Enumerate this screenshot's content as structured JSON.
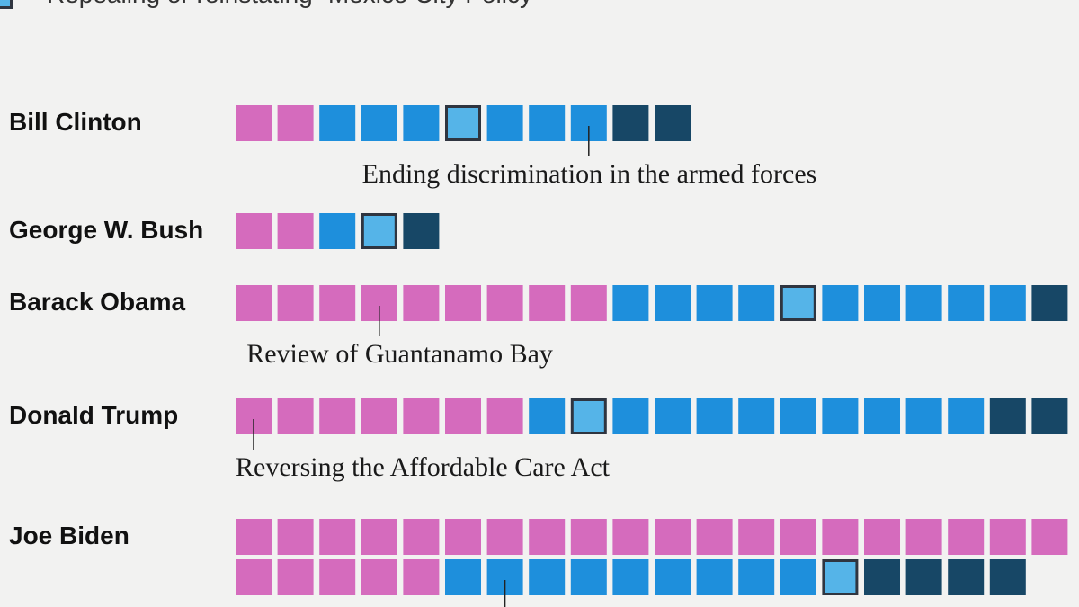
{
  "legend": {
    "label": "Repealing or reinstating “Mexico City Policy”",
    "swatch_color": "#55b4e8"
  },
  "colors": {
    "pink": "#d56bbd",
    "blue": "#1e8fdc",
    "light_blue": "#55b4e8",
    "dark_navy": "#174766",
    "highlight_border": "#2f3540"
  },
  "chart_data": {
    "type": "waffle",
    "categories_legend": [
      "pink",
      "blue",
      "light_blue",
      "dark_navy"
    ],
    "presidents": [
      {
        "name": "Bill Clinton",
        "blocks": [
          "pink",
          "pink",
          "blue",
          "blue",
          "blue",
          "light_blue",
          "blue",
          "blue",
          "blue",
          "dark_navy",
          "dark_navy"
        ],
        "highlight_index": 5,
        "annotation": {
          "text": "Ending discrimination in the armed forces",
          "index": 8
        }
      },
      {
        "name": "George W. Bush",
        "blocks": [
          "pink",
          "pink",
          "blue",
          "light_blue",
          "dark_navy"
        ],
        "highlight_index": 3,
        "annotation": null
      },
      {
        "name": "Barack Obama",
        "blocks": [
          "pink",
          "pink",
          "pink",
          "pink",
          "pink",
          "pink",
          "pink",
          "pink",
          "pink",
          "blue",
          "blue",
          "blue",
          "blue",
          "light_blue",
          "blue",
          "blue",
          "blue",
          "blue",
          "blue",
          "dark_navy"
        ],
        "highlight_index": 13,
        "annotation": {
          "text": "Review of Guantanamo Bay",
          "index": 3
        }
      },
      {
        "name": "Donald Trump",
        "blocks": [
          "pink",
          "pink",
          "pink",
          "pink",
          "pink",
          "pink",
          "pink",
          "blue",
          "light_blue",
          "blue",
          "blue",
          "blue",
          "blue",
          "blue",
          "blue",
          "blue",
          "blue",
          "blue",
          "dark_navy",
          "dark_navy"
        ],
        "highlight_index": 8,
        "annotation": {
          "text": "Reversing the Affordable Care Act",
          "index": 0
        }
      },
      {
        "name": "Joe Biden",
        "blocks": [
          "pink",
          "pink",
          "pink",
          "pink",
          "pink",
          "pink",
          "pink",
          "pink",
          "pink",
          "pink",
          "pink",
          "pink",
          "pink",
          "pink",
          "pink",
          "pink",
          "pink",
          "pink",
          "pink",
          "pink",
          "pink",
          "pink",
          "pink",
          "pink",
          "pink",
          "blue",
          "blue",
          "blue",
          "blue",
          "blue",
          "blue",
          "blue",
          "blue",
          "blue",
          "light_blue",
          "dark_navy",
          "dark_navy",
          "dark_navy",
          "dark_navy"
        ],
        "highlight_index": 34,
        "annotation": {
          "text": "",
          "index": 26
        }
      }
    ]
  }
}
